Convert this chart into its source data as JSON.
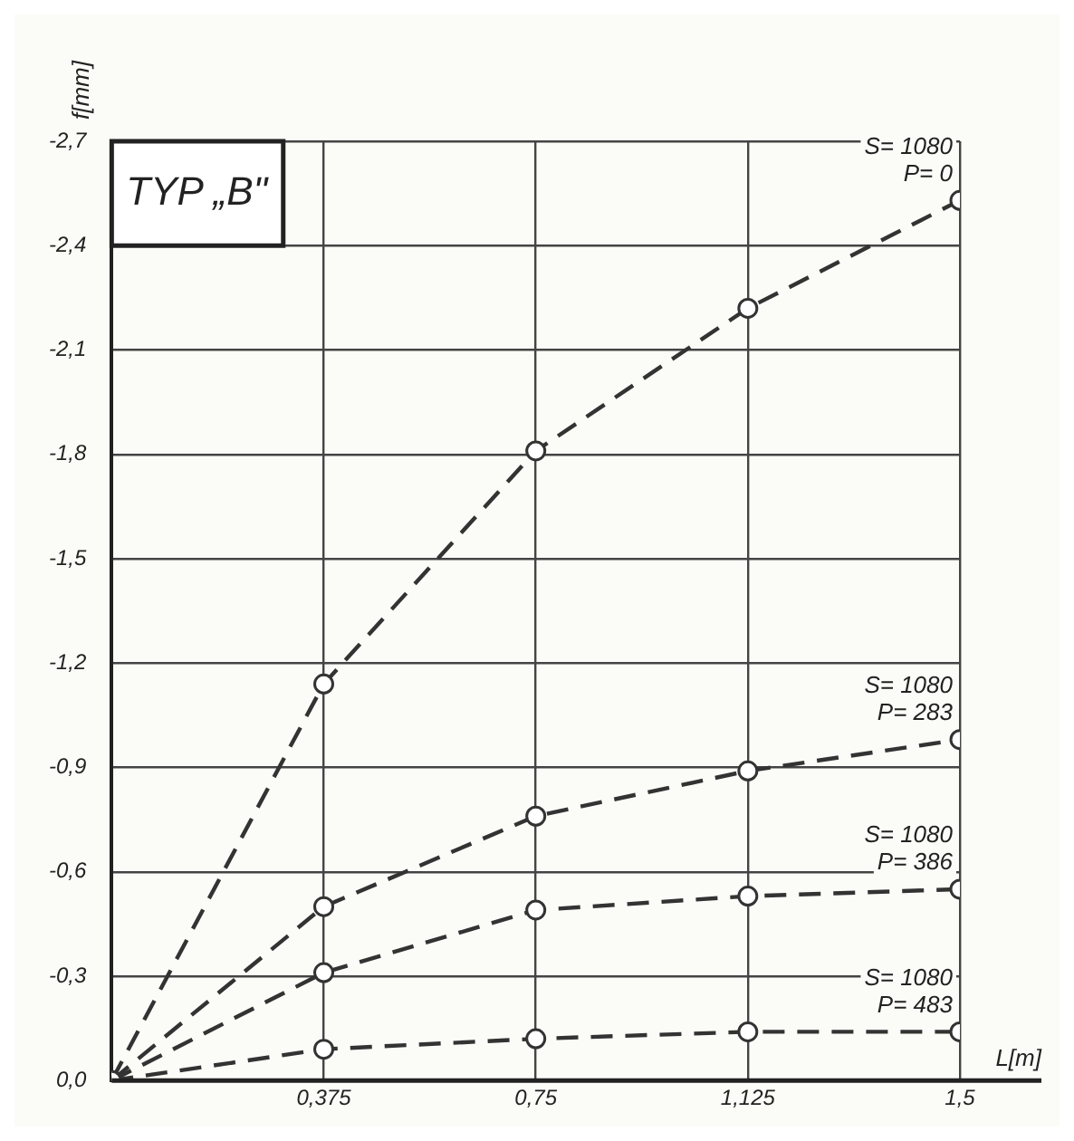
{
  "chart_data": {
    "type": "line",
    "title": "TYP „B\"",
    "xlabel": "L[m]",
    "ylabel": "f[mm]",
    "x": [
      0,
      0.375,
      0.75,
      1.125,
      1.5
    ],
    "series": [
      {
        "name": "S= 1080\nP= 0",
        "color": "#333333",
        "values": [
          0,
          -1.14,
          -1.81,
          -2.22,
          -2.53
        ]
      },
      {
        "name": "S= 1080\nP= 283",
        "color": "#333333",
        "values": [
          0,
          -0.5,
          -0.76,
          -0.89,
          -0.98
        ]
      },
      {
        "name": "S= 1080\nP= 386",
        "color": "#333333",
        "values": [
          0,
          -0.31,
          -0.49,
          -0.53,
          -0.55
        ]
      },
      {
        "name": "S= 1080\nP= 483",
        "color": "#333333",
        "values": [
          0,
          -0.09,
          -0.12,
          -0.14,
          -0.14
        ]
      }
    ],
    "xlim": [
      0,
      1.5
    ],
    "xticks": [
      {
        "value": 0.375,
        "label": "0,375"
      },
      {
        "value": 0.75,
        "label": "0,75"
      },
      {
        "value": 1.125,
        "label": "1,125"
      },
      {
        "value": 1.5,
        "label": "1,5"
      }
    ],
    "ylim": [
      0,
      -2.7
    ],
    "yticks": [
      {
        "value": 0,
        "label": "0,0"
      },
      {
        "value": -0.3,
        "label": "-0,3"
      },
      {
        "value": -0.6,
        "label": "-0,6"
      },
      {
        "value": -0.9,
        "label": "-0,9"
      },
      {
        "value": -1.2,
        "label": "-1,2"
      },
      {
        "value": -1.5,
        "label": "-1,5"
      },
      {
        "value": -1.8,
        "label": "-1,8"
      },
      {
        "value": -2.1,
        "label": "-2,1"
      },
      {
        "value": -2.4,
        "label": "-2,4"
      },
      {
        "value": -2.7,
        "label": "-2,7"
      }
    ],
    "grid": true,
    "legend": false,
    "marker": "circle",
    "line_style": "dashed"
  }
}
